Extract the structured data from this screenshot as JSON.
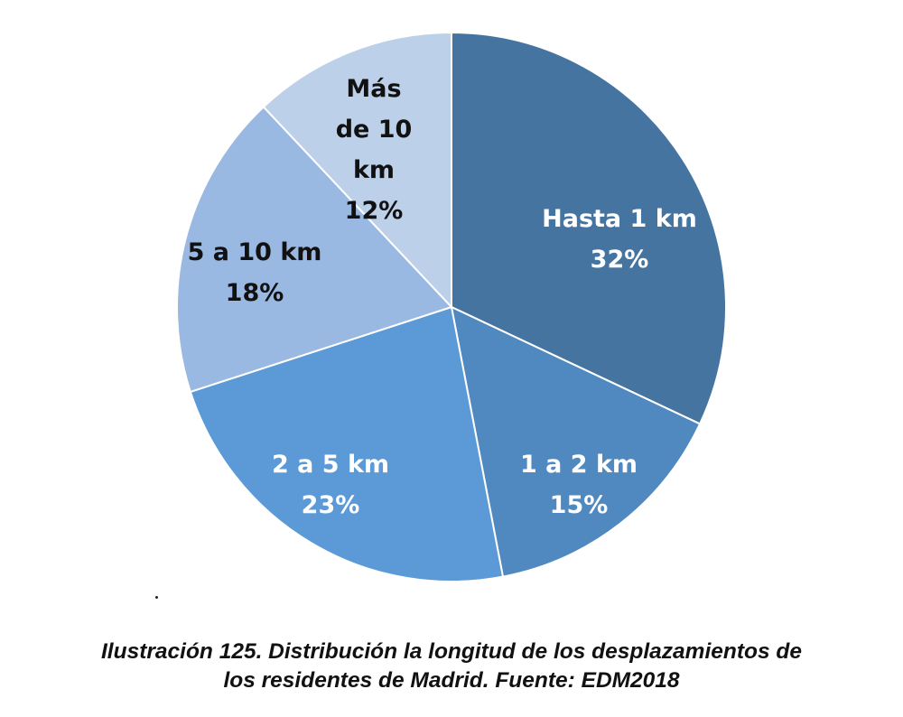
{
  "chart_data": {
    "type": "pie",
    "start": "12 o'clock, clockwise",
    "slices": [
      {
        "label_lines": [
          "Hasta 1 km",
          "32%"
        ],
        "value": 32,
        "color": "#4674a1",
        "text_color": "#ffffff"
      },
      {
        "label_lines": [
          "1 a 2 km",
          "15%"
        ],
        "value": 15,
        "color": "#5088c0",
        "text_color": "#ffffff"
      },
      {
        "label_lines": [
          "2 a 5 km",
          "23%"
        ],
        "value": 23,
        "color": "#5b9ad6",
        "text_color": "#ffffff"
      },
      {
        "label_lines": [
          "5 a 10 km",
          "18%"
        ],
        "value": 18,
        "color": "#99b9e2",
        "text_color": "#111111"
      },
      {
        "label_lines": [
          "Más",
          "de 10",
          "km",
          "12%"
        ],
        "value": 12,
        "color": "#bdd0ea",
        "text_color": "#111111"
      }
    ],
    "title": "",
    "legend": "none (labels inside slices)"
  },
  "caption": {
    "line1": "Ilustración 125. Distribución la longitud de los desplazamientos de",
    "line2": "los residentes de Madrid. Fuente: EDM2018"
  }
}
